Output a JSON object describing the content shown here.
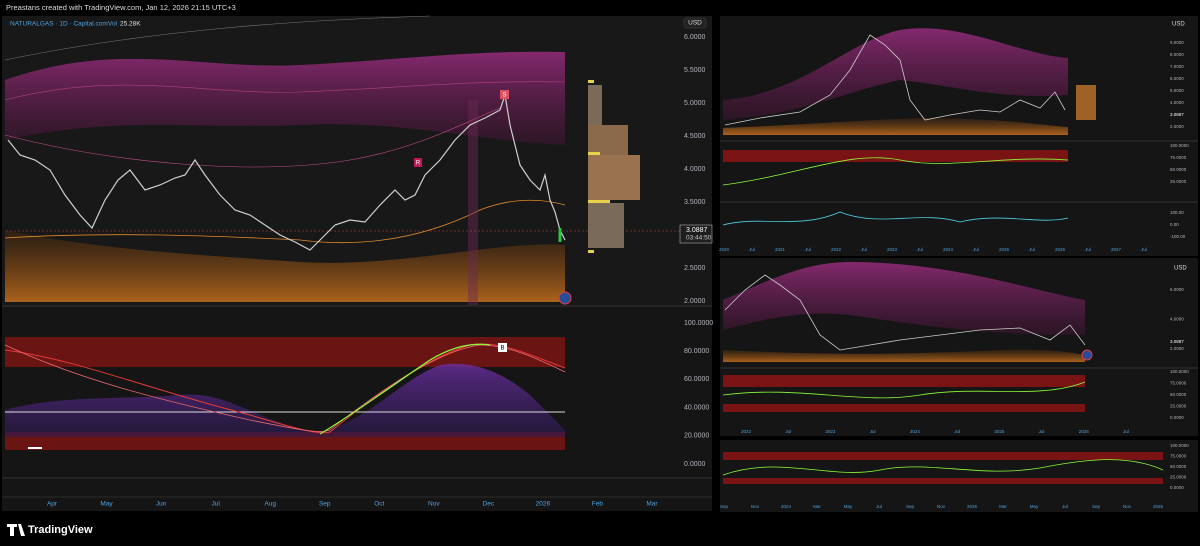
{
  "header": {
    "attribution": "Preastans created with TradingView.com, Jan 12, 2026 21:15 UTC+3"
  },
  "main_chart": {
    "symbol": "NATURALGAS · 1D · Capital.com",
    "volume_label": "Vol",
    "volume": "25.28K",
    "currency": "USD",
    "price_axis": [
      "6.0000",
      "5.5000",
      "5.0000",
      "4.5000",
      "4.0000",
      "3.5000",
      "2.5000",
      "2.0000"
    ],
    "last_price": "3.0887",
    "countdown": "03:44:50",
    "signal_labels": [
      "R",
      "S"
    ],
    "oscillator_axis": [
      "100.0000",
      "80.0000",
      "60.0000",
      "40.0000",
      "20.0000",
      "0.0000"
    ],
    "oscillator_signal": "B",
    "time_axis": [
      "Apr",
      "May",
      "Jun",
      "Jul",
      "Aug",
      "Sep",
      "Oct",
      "Nov",
      "Dec",
      "2026",
      "Feb",
      "Mar"
    ]
  },
  "weekly_chart": {
    "currency": "USD",
    "price_axis": [
      "9.0000",
      "8.0000",
      "7.0000",
      "6.0000",
      "5.0000",
      "4.0000",
      "2.0000"
    ],
    "last_price": "3.0887",
    "oscillator_axis": [
      "100.0000",
      "75.0000",
      "50.0000",
      "25.0000"
    ],
    "oscillator2_axis": [
      "100.00",
      "0.00",
      "-100.00"
    ],
    "time_axis": [
      "2020",
      "Jul",
      "2021",
      "Jul",
      "2022",
      "Jul",
      "2023",
      "Jul",
      "2024",
      "Jul",
      "2025",
      "Jul",
      "2026",
      "Jul",
      "2027",
      "Jul"
    ]
  },
  "second_chart": {
    "currency": "USD",
    "price_axis": [
      "6.0000",
      "4.0000",
      "2.0000"
    ],
    "last_price": "3.0887",
    "oscillator_axis": [
      "100.0000",
      "75.0000",
      "50.0000",
      "25.0000",
      "0.0000"
    ],
    "time_axis": [
      "2022",
      "Jul",
      "2023",
      "Jul",
      "2024",
      "Jul",
      "2025",
      "Jul",
      "2026",
      "Jul"
    ]
  },
  "third_chart": {
    "oscillator_axis": [
      "100.0000",
      "75.0000",
      "50.0000",
      "25.0000",
      "0.0000"
    ],
    "time_axis": [
      "Sep",
      "Nov",
      "2024",
      "Mar",
      "May",
      "Jul",
      "Sep",
      "Nov",
      "2025",
      "Mar",
      "May",
      "Jul",
      "Sep",
      "Nov",
      "2026"
    ]
  },
  "footer": {
    "brand": "TradingView"
  }
}
